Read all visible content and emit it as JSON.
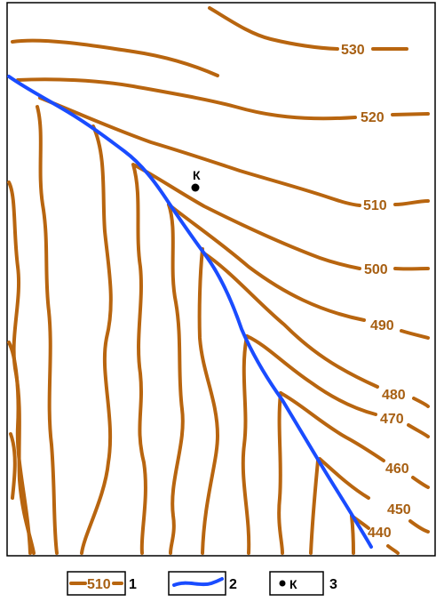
{
  "map": {
    "contour_labels": [
      "530",
      "520",
      "510",
      "500",
      "490",
      "480",
      "470",
      "460",
      "450",
      "440"
    ],
    "point": {
      "label": "К"
    },
    "colors": {
      "contour": "#b8650f",
      "label": "#a75f12",
      "river": "#1a4cff"
    }
  },
  "legend": {
    "items": [
      {
        "number": "1",
        "sample_label": "510",
        "meaning": "contour-line"
      },
      {
        "number": "2",
        "meaning": "river"
      },
      {
        "number": "3",
        "sample_label": "К",
        "meaning": "point"
      }
    ]
  }
}
